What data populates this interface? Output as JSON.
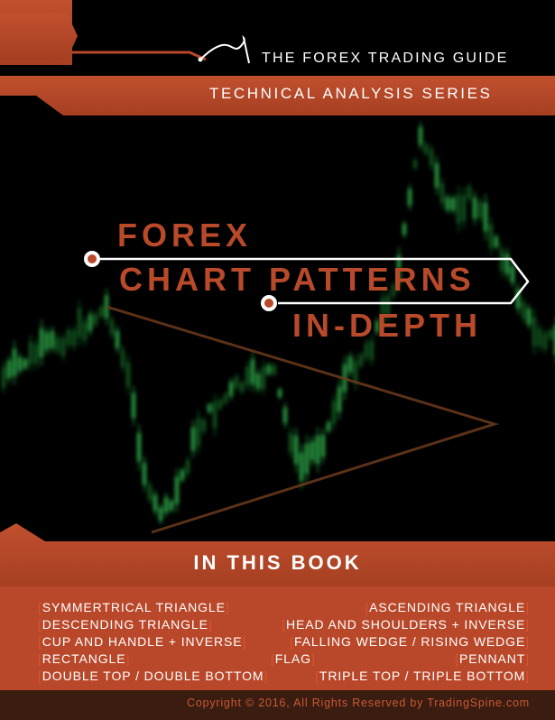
{
  "header": {
    "guide_title": "THE FOREX TRADING GUIDE",
    "series_title": "TECHNICAL ANALYSIS SERIES"
  },
  "title": {
    "line1": "FOREX",
    "line2": "CHART PATTERNS",
    "line3": "IN-DEPTH"
  },
  "book_contents": {
    "heading": "IN THIS BOOK",
    "patterns": [
      "SYMMERTRICAL TRIANGLE",
      "ASCENDING TRIANGLE",
      "DESCENDING TRIANGLE",
      "HEAD AND SHOULDERS + INVERSE",
      "CUP AND HANDLE + INVERSE",
      "FALLING WEDGE / RISING WEDGE",
      "RECTANGLE",
      "FLAG",
      "PENNANT",
      "DOUBLE TOP / DOUBLE BOTTOM",
      "TRIPLE TOP / TRIPLE BOTTOM"
    ]
  },
  "footer": {
    "copyright": "Copyright © 2016, All Rights Reserved by TradingSpine.com"
  },
  "colors": {
    "accent": "#b84a2a",
    "band": "#b9482a",
    "band_dark": "#8e3218",
    "background": "#000000",
    "candle_green": "#1f8a34"
  },
  "icons": [
    "pen-signature-icon",
    "bullet-ring-icon",
    "arrow-frame-icon"
  ]
}
